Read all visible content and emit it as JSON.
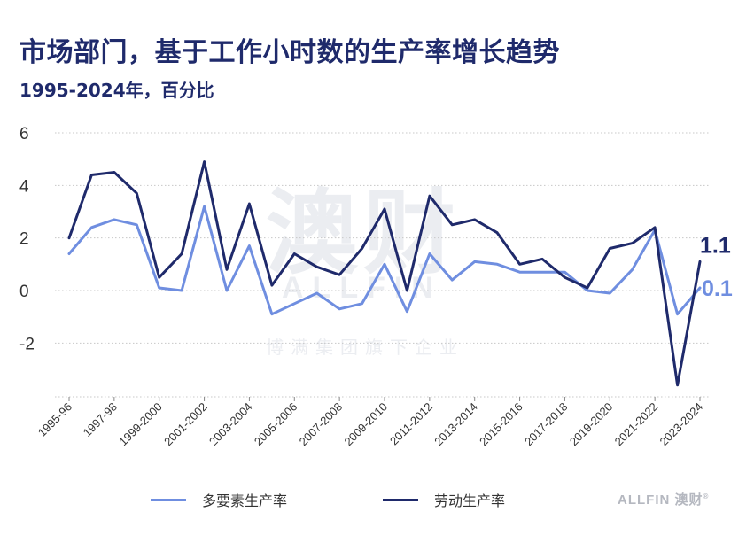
{
  "title": "市场部门，基于工作小时数的生产率增长趋势",
  "subtitle": "1995-2024年，百分比",
  "watermark": {
    "big": "澳财",
    "mid": "ALLFIN",
    "small": "博满集团旗下企业"
  },
  "brand": {
    "text": "ALLFIN 澳财",
    "mark": "®"
  },
  "colors": {
    "mfp": "#6f8ee0",
    "labour": "#1f2a6b",
    "title": "#1f2a6b",
    "grid": "#c8c8c8"
  },
  "chart_data": {
    "type": "line",
    "title": "市场部门，基于工作小时数的生产率增长趋势",
    "subtitle": "1995-2024年，百分比",
    "xlabel": "",
    "ylabel": "",
    "ylim": [
      -4,
      6
    ],
    "yticks": [
      6,
      4,
      2,
      0,
      -2
    ],
    "grid": true,
    "legend_position": "bottom",
    "x": [
      "1995-96",
      "1996-97",
      "1997-98",
      "1998-99",
      "1999-2000",
      "2000-01",
      "2001-2002",
      "2002-03",
      "2003-2004",
      "2004-05",
      "2005-2006",
      "2006-07",
      "2007-2008",
      "2008-09",
      "2009-2010",
      "2010-11",
      "2011-2012",
      "2012-13",
      "2013-2014",
      "2014-15",
      "2015-2016",
      "2016-17",
      "2017-2018",
      "2018-19",
      "2019-2020",
      "2020-21",
      "2021-2022",
      "2022-23",
      "2023-2024"
    ],
    "x_tick_labels": [
      "1995-96",
      "1997-98",
      "1999-2000",
      "2001-2002",
      "2003-2004",
      "2005-2006",
      "2007-2008",
      "2009-2010",
      "2011-2012",
      "2013-2014",
      "2015-2016",
      "2017-2018",
      "2019-2020",
      "2021-2022",
      "2023-2024"
    ],
    "series": [
      {
        "name": "多要素生产率",
        "values": [
          1.4,
          2.4,
          2.7,
          2.5,
          0.1,
          0.0,
          3.2,
          0.0,
          1.7,
          -0.9,
          -0.5,
          -0.1,
          -0.7,
          -0.5,
          1.0,
          -0.8,
          1.4,
          0.4,
          1.1,
          1.0,
          0.7,
          0.7,
          0.7,
          0.0,
          -0.1,
          0.8,
          2.3,
          -0.9,
          0.1
        ],
        "end_label": "0.1"
      },
      {
        "name": "劳动生产率",
        "values": [
          2.0,
          4.4,
          4.5,
          3.7,
          0.5,
          1.4,
          4.9,
          0.8,
          3.3,
          0.2,
          1.4,
          0.9,
          0.6,
          1.6,
          3.1,
          0.0,
          3.6,
          2.5,
          2.7,
          2.2,
          1.0,
          1.2,
          0.5,
          0.1,
          1.6,
          1.8,
          2.4,
          -3.6,
          1.1
        ],
        "end_label": "1.1"
      }
    ]
  }
}
